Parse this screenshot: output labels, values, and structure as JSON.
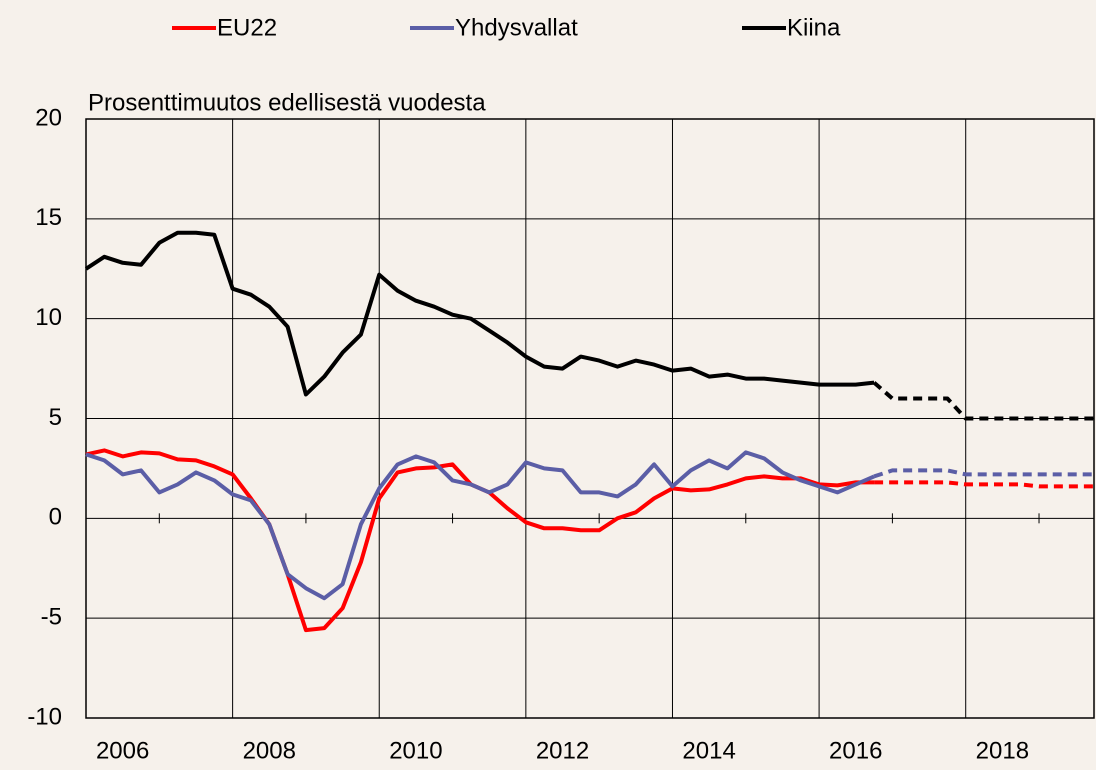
{
  "chart_data": {
    "type": "line",
    "title": "Prosenttimuutos edellisestä vuodesta",
    "x": [
      2006,
      2006.25,
      2006.5,
      2006.75,
      2007,
      2007.25,
      2007.5,
      2007.75,
      2008,
      2008.25,
      2008.5,
      2008.75,
      2009,
      2009.25,
      2009.5,
      2009.75,
      2010,
      2010.25,
      2010.5,
      2010.75,
      2011,
      2011.25,
      2011.5,
      2011.75,
      2012,
      2012.25,
      2012.5,
      2012.75,
      2013,
      2013.25,
      2013.5,
      2013.75,
      2014,
      2014.25,
      2014.5,
      2014.75,
      2015,
      2015.25,
      2015.5,
      2015.75,
      2016,
      2016.25,
      2016.5,
      2016.75,
      2017,
      2017.25,
      2017.5,
      2017.75,
      2018,
      2018.25,
      2018.5,
      2018.75,
      2019,
      2019.25,
      2019.5,
      2019.75
    ],
    "forecast_from": 2016.75,
    "series": [
      {
        "name": "EU22",
        "color": "#ff0000",
        "values": [
          3.2,
          3.4,
          3.1,
          3.3,
          3.25,
          2.95,
          2.9,
          2.6,
          2.2,
          1.0,
          -0.3,
          -2.8,
          -5.6,
          -5.5,
          -4.5,
          -2.2,
          1.0,
          2.3,
          2.5,
          2.55,
          2.7,
          1.7,
          1.3,
          0.5,
          -0.2,
          -0.5,
          -0.5,
          -0.6,
          -0.6,
          0.0,
          0.3,
          1.0,
          1.5,
          1.4,
          1.45,
          1.7,
          2.0,
          2.1,
          2.0,
          2.0,
          1.7,
          1.65,
          1.8,
          1.8,
          1.8,
          1.8,
          1.8,
          1.8,
          1.7,
          1.7,
          1.7,
          1.7,
          1.6,
          1.6,
          1.6,
          1.6
        ]
      },
      {
        "name": "Yhdysvallat",
        "color": "#5b5ea6",
        "values": [
          3.2,
          2.9,
          2.2,
          2.4,
          1.3,
          1.7,
          2.3,
          1.9,
          1.2,
          0.9,
          -0.3,
          -2.8,
          -3.5,
          -4.0,
          -3.3,
          -0.3,
          1.5,
          2.7,
          3.1,
          2.8,
          1.9,
          1.7,
          1.3,
          1.7,
          2.8,
          2.5,
          2.4,
          1.3,
          1.3,
          1.1,
          1.7,
          2.7,
          1.6,
          2.4,
          2.9,
          2.5,
          3.3,
          3.0,
          2.3,
          1.9,
          1.6,
          1.3,
          1.7,
          2.1,
          2.4,
          2.4,
          2.4,
          2.4,
          2.2,
          2.2,
          2.2,
          2.2,
          2.2,
          2.2,
          2.2,
          2.2
        ]
      },
      {
        "name": "Kiina",
        "color": "#000000",
        "values": [
          12.5,
          13.1,
          12.8,
          12.7,
          13.8,
          14.3,
          14.3,
          14.2,
          11.5,
          11.2,
          10.6,
          9.6,
          6.2,
          7.1,
          8.3,
          9.2,
          12.2,
          11.4,
          10.9,
          10.6,
          10.2,
          10.0,
          9.4,
          8.8,
          8.1,
          7.6,
          7.5,
          8.1,
          7.9,
          7.6,
          7.9,
          7.7,
          7.4,
          7.5,
          7.1,
          7.2,
          7.0,
          7.0,
          6.9,
          6.8,
          6.7,
          6.7,
          6.7,
          6.8,
          6.0,
          6.0,
          6.0,
          6.0,
          5.0,
          5.0,
          5.0,
          5.0,
          5.0,
          5.0,
          5.0,
          5.0
        ]
      }
    ],
    "xlim": [
      2006,
      2019.75
    ],
    "xticks": [
      2006,
      2008,
      2010,
      2012,
      2014,
      2016,
      2018
    ],
    "xminorticks": [
      2007,
      2009,
      2011,
      2013,
      2015,
      2017,
      2019
    ],
    "ylim": [
      -10,
      20
    ],
    "yticks": [
      -10,
      -5,
      0,
      5,
      10,
      15,
      20
    ],
    "grid": true,
    "legend": "top"
  }
}
